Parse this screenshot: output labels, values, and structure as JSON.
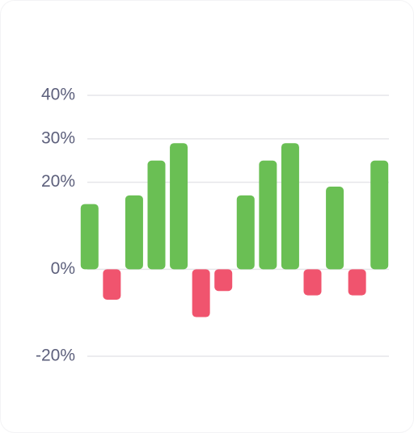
{
  "chart_data": {
    "type": "bar",
    "values": [
      15,
      -7,
      17,
      25,
      29,
      -11,
      -5,
      17,
      25,
      29,
      -6,
      19,
      -6,
      25
    ],
    "positive_color": "#6abf54",
    "negative_color": "#f0546e",
    "ylim": [
      -20,
      40
    ],
    "yticks": [
      {
        "value": -20,
        "label": "-20%"
      },
      {
        "value": 0,
        "label": "0%"
      },
      {
        "value": 20,
        "label": "20%"
      },
      {
        "value": 30,
        "label": "30%"
      },
      {
        "value": 40,
        "label": "40%"
      }
    ],
    "grid": true
  }
}
